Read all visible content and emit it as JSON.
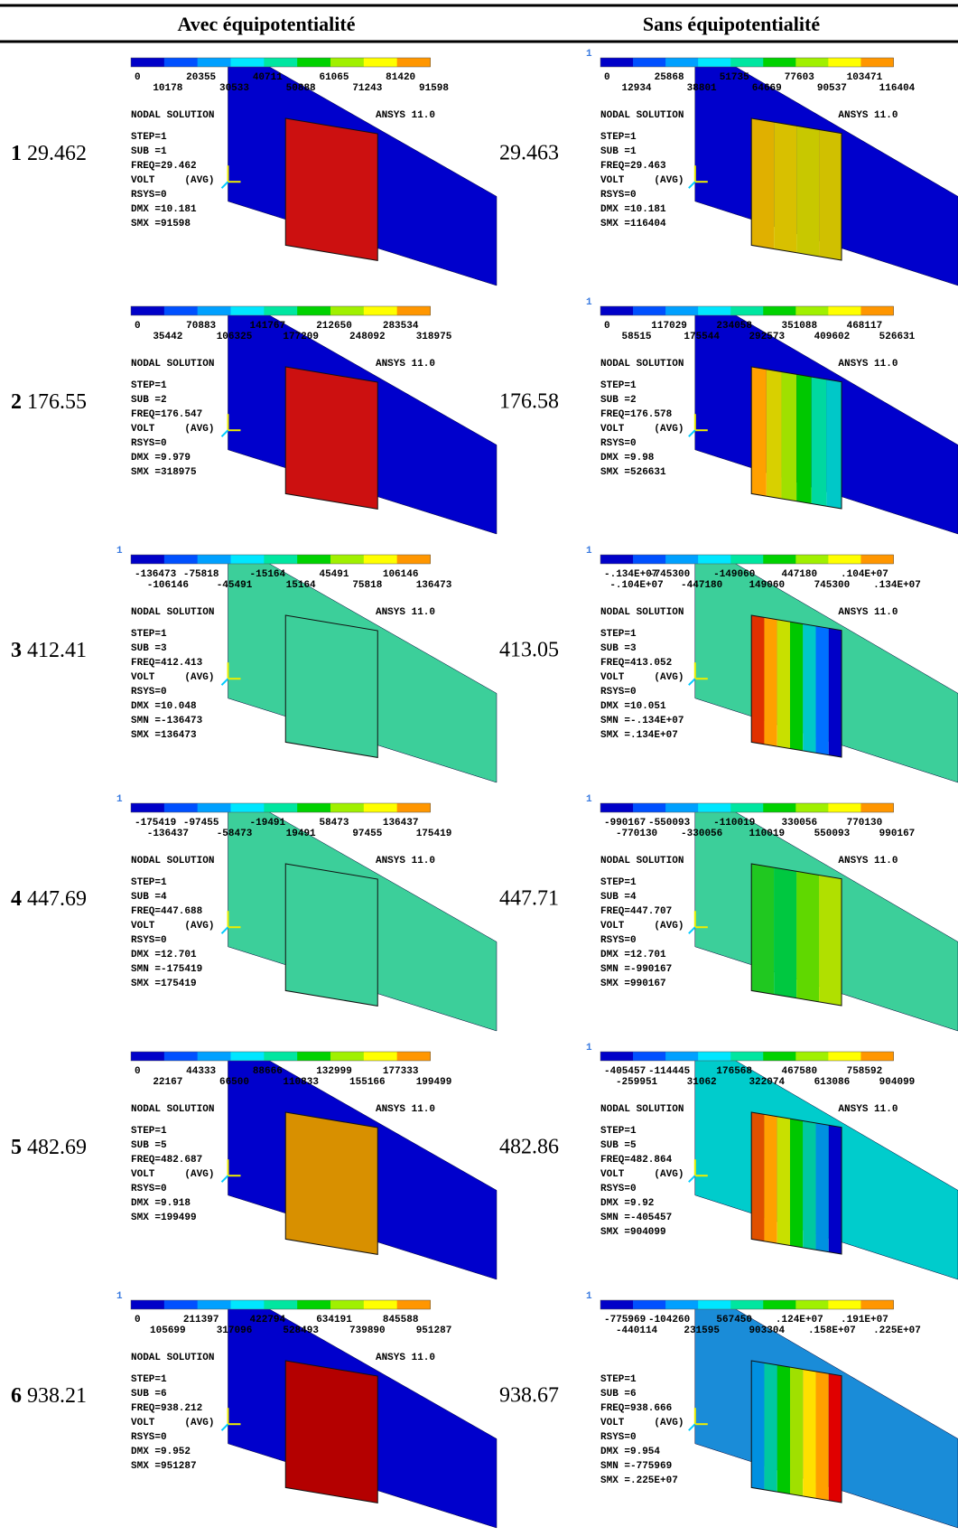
{
  "header": {
    "left": "Avec équipotentialité",
    "right": "Sans équipotentialité"
  },
  "rows": [
    {
      "number": "1",
      "left_freq": "29.462",
      "right_freq": "29.463",
      "left_panel": {
        "legend_top": [
          "0",
          "20355",
          "40711",
          "61065",
          "81420"
        ],
        "legend_bottom": [
          "10178",
          "30533",
          "50888",
          "71243",
          "91598"
        ],
        "title": "NODAL SOLUTION",
        "version": "ANSYS 11.0",
        "info": [
          "STEP=1",
          "SUB =1",
          "FREQ=29.462",
          "VOLT     (AVG)",
          "RSYS=0",
          "DMX =10.181",
          "SMX =91598"
        ]
      },
      "right_panel": {
        "corner": "1",
        "legend_top": [
          "0",
          "25868",
          "51735",
          "77603",
          "103471"
        ],
        "legend_bottom": [
          "12934",
          "38801",
          "64669",
          "90537",
          "116404"
        ],
        "title": "NODAL SOLUTION",
        "version": "ANSYS 11.0",
        "info": [
          "STEP=1",
          "SUB =1",
          "FREQ=29.463",
          "VOLT     (AVG)",
          "RSYS=0",
          "DMX =10.181",
          "SMX =116404"
        ]
      }
    },
    {
      "number": "2",
      "left_freq": "176.55",
      "right_freq": "176.58",
      "left_panel": {
        "legend_top": [
          "0",
          "70883",
          "141767",
          "212650",
          "283534"
        ],
        "legend_bottom": [
          "35442",
          "106325",
          "177209",
          "248092",
          "318975"
        ],
        "title": "NODAL SOLUTION",
        "version": "ANSYS 11.0",
        "info": [
          "STEP=1",
          "SUB =2",
          "FREQ=176.547",
          "VOLT     (AVG)",
          "RSYS=0",
          "DMX =9.979",
          "SMX =318975"
        ]
      },
      "right_panel": {
        "corner": "1",
        "legend_top": [
          "0",
          "117029",
          "234058",
          "351088",
          "468117"
        ],
        "legend_bottom": [
          "58515",
          "175544",
          "292573",
          "409602",
          "526631"
        ],
        "title": "NODAL SOLUTION",
        "version": "ANSYS 11.0",
        "info": [
          "STEP=1",
          "SUB =2",
          "FREQ=176.578",
          "VOLT     (AVG)",
          "RSYS=0",
          "DMX =9.98",
          "SMX =526631"
        ]
      }
    },
    {
      "number": "3",
      "left_freq": "412.41",
      "right_freq": "413.05",
      "left_panel": {
        "corner": "1",
        "legend_top": [
          "-136473",
          "-75818",
          "-15164",
          "45491",
          "106146"
        ],
        "legend_bottom": [
          "-106146",
          "-45491",
          "15164",
          "75818",
          "136473"
        ],
        "title": "NODAL SOLUTION",
        "version": "ANSYS 11.0",
        "info": [
          "STEP=1",
          "SUB =3",
          "FREQ=412.413",
          "VOLT     (AVG)",
          "RSYS=0",
          "DMX =10.048",
          "SMN =-136473",
          "SMX =136473"
        ]
      },
      "right_panel": {
        "corner": "1",
        "legend_top": [
          "-.134E+07",
          "-745300",
          "-149060",
          "447180",
          ".104E+07"
        ],
        "legend_bottom": [
          "-.104E+07",
          "-447180",
          "149060",
          "745300",
          ".134E+07"
        ],
        "title": "NODAL SOLUTION",
        "version": "ANSYS 11.0",
        "info": [
          "STEP=1",
          "SUB =3",
          "FREQ=413.052",
          "VOLT     (AVG)",
          "RSYS=0",
          "DMX =10.051",
          "SMN =-.134E+07",
          "SMX =.134E+07"
        ]
      }
    },
    {
      "number": "4",
      "left_freq": "447.69",
      "right_freq": "447.71",
      "left_panel": {
        "corner": "1",
        "legend_top": [
          "-175419",
          "-97455",
          "-19491",
          "58473",
          "136437"
        ],
        "legend_bottom": [
          "-136437",
          "-58473",
          "19491",
          "97455",
          "175419"
        ],
        "title": "NODAL SOLUTION",
        "version": "ANSYS 11.0",
        "info": [
          "STEP=1",
          "SUB =4",
          "FREQ=447.688",
          "VOLT     (AVG)",
          "RSYS=0",
          "DMX =12.701",
          "SMN =-175419",
          "SMX =175419"
        ]
      },
      "right_panel": {
        "corner": "1",
        "legend_top": [
          "-990167",
          "-550093",
          "-110019",
          "330056",
          "770130"
        ],
        "legend_bottom": [
          "-770130",
          "-330056",
          "110019",
          "550093",
          "990167"
        ],
        "title": "NODAL SOLUTION",
        "version": "ANSYS 11.0",
        "info": [
          "STEP=1",
          "SUB =4",
          "FREQ=447.707",
          "VOLT     (AVG)",
          "RSYS=0",
          "DMX =12.701",
          "SMN =-990167",
          "SMX =990167"
        ]
      }
    },
    {
      "number": "5",
      "left_freq": "482.69",
      "right_freq": "482.86",
      "left_panel": {
        "legend_top": [
          "0",
          "44333",
          "88666",
          "132999",
          "177333"
        ],
        "legend_bottom": [
          "22167",
          "66500",
          "110833",
          "155166",
          "199499"
        ],
        "title": "NODAL SOLUTION",
        "version": "ANSYS 11.0",
        "info": [
          "STEP=1",
          "SUB =5",
          "FREQ=482.687",
          "VOLT     (AVG)",
          "RSYS=0",
          "DMX =9.918",
          "SMX =199499"
        ]
      },
      "right_panel": {
        "corner": "1",
        "legend_top": [
          "-405457",
          "-114445",
          "176568",
          "467580",
          "758592"
        ],
        "legend_bottom": [
          "-259951",
          "31062",
          "322074",
          "613086",
          "904099"
        ],
        "title": "NODAL SOLUTION",
        "version": "ANSYS 11.0",
        "info": [
          "STEP=1",
          "SUB =5",
          "FREQ=482.864",
          "VOLT     (AVG)",
          "RSYS=0",
          "DMX =9.92",
          "SMN =-405457",
          "SMX =904099"
        ]
      }
    },
    {
      "number": "6",
      "left_freq": "938.21",
      "right_freq": "938.67",
      "left_panel": {
        "corner": "1",
        "legend_top": [
          "0",
          "211397",
          "422794",
          "634191",
          "845588"
        ],
        "legend_bottom": [
          "105699",
          "317096",
          "528493",
          "739890",
          "951287"
        ],
        "title": "NODAL SOLUTION",
        "version": "ANSYS 11.0",
        "info": [
          "STEP=1",
          "SUB =6",
          "FREQ=938.212",
          "VOLT     (AVG)",
          "RSYS=0",
          "DMX =9.952",
          "SMX =951287"
        ]
      },
      "right_panel": {
        "corner": "1",
        "legend_top": [
          "-775969",
          "-104260",
          "567450",
          ".124E+07",
          ".191E+07"
        ],
        "legend_bottom": [
          "-440114",
          "231595",
          "903304",
          ".158E+07",
          ".225E+07"
        ],
        "info": [
          "STEP=1",
          "SUB =6",
          "FREQ=938.666",
          "VOLT     (AVG)",
          "RSYS=0",
          "DMX =9.954",
          "SMN =-775969",
          "SMX =.225E+07"
        ]
      }
    }
  ]
}
